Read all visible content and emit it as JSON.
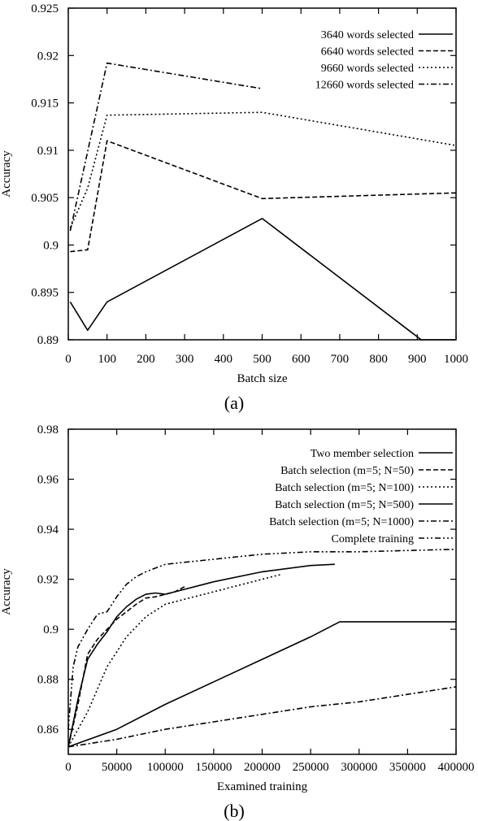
{
  "chart_data": [
    {
      "type": "line",
      "panel_label": "(a)",
      "xlabel": "Batch size",
      "ylabel": "Accuracy",
      "xlim": [
        0,
        1000
      ],
      "ylim": [
        0.89,
        0.925
      ],
      "xticks": [
        0,
        100,
        200,
        300,
        400,
        500,
        600,
        700,
        800,
        900,
        1000
      ],
      "xtick_labels": [
        "0",
        "100",
        "200",
        "300",
        "400",
        "500",
        "600",
        "700",
        "800",
        "900",
        "1000"
      ],
      "yticks": [
        0.89,
        0.895,
        0.9,
        0.905,
        0.91,
        0.915,
        0.92,
        0.925
      ],
      "ytick_labels": [
        "0.89",
        "0.895",
        "0.9",
        "0.905",
        "0.91",
        "0.915",
        "0.92",
        "0.925"
      ],
      "grid": false,
      "legend_position": "top-right",
      "series": [
        {
          "name": "3640 words selected",
          "dash": "solid",
          "x": [
            5,
            50,
            100,
            500,
            910,
            1000
          ],
          "y": [
            0.894,
            0.891,
            0.894,
            0.9028,
            0.89,
            0.89
          ]
        },
        {
          "name": "6640 words selected",
          "dash": "dashed",
          "x": [
            5,
            50,
            100,
            500,
            1000
          ],
          "y": [
            0.8993,
            0.8995,
            0.911,
            0.9049,
            0.9055
          ]
        },
        {
          "name": "9660 words selected",
          "dash": "dotted",
          "x": [
            5,
            50,
            100,
            500,
            1000
          ],
          "y": [
            0.9018,
            0.906,
            0.9137,
            0.914,
            0.9105
          ]
        },
        {
          "name": "12660 words selected",
          "dash": "dashdot",
          "x": [
            5,
            100,
            500
          ],
          "y": [
            0.9015,
            0.9192,
            0.9165
          ]
        }
      ]
    },
    {
      "type": "line",
      "panel_label": "(b)",
      "xlabel": "Examined training",
      "ylabel": "Accuracy",
      "xlim": [
        0,
        400000
      ],
      "ylim": [
        0.85,
        0.98
      ],
      "xticks": [
        0,
        50000,
        100000,
        150000,
        200000,
        250000,
        300000,
        350000,
        400000
      ],
      "xtick_labels": [
        "0",
        "50000",
        "100000",
        "150000",
        "200000",
        "250000",
        "300000",
        "350000",
        "400000"
      ],
      "yticks": [
        0.86,
        0.88,
        0.9,
        0.92,
        0.94,
        0.96,
        0.98
      ],
      "ytick_labels": [
        "0.86",
        "0.88",
        "0.9",
        "0.92",
        "0.94",
        "0.96",
        "0.98"
      ],
      "grid": false,
      "legend_position": "top-right",
      "series": [
        {
          "name": "Two member selection",
          "dash": "solid",
          "x": [
            0,
            10000,
            20000,
            30000,
            40000,
            50000,
            60000,
            70000,
            80000,
            90000,
            100000,
            110000,
            150000,
            200000,
            250000,
            275000
          ],
          "y": [
            0.853,
            0.872,
            0.888,
            0.894,
            0.899,
            0.905,
            0.909,
            0.912,
            0.914,
            0.9145,
            0.914,
            0.915,
            0.919,
            0.923,
            0.9255,
            0.926
          ]
        },
        {
          "name": "Batch selection (m=5; N=50)",
          "dash": "dashed",
          "x": [
            0,
            10000,
            20000,
            30000,
            40000,
            50000,
            60000,
            70000,
            80000,
            90000,
            100000,
            110000,
            120000
          ],
          "y": [
            0.853,
            0.87,
            0.89,
            0.896,
            0.9,
            0.904,
            0.907,
            0.91,
            0.9125,
            0.913,
            0.914,
            0.915,
            0.917
          ]
        },
        {
          "name": "Batch selection (m=5; N=100)",
          "dash": "dotted",
          "x": [
            0,
            20000,
            40000,
            60000,
            80000,
            100000,
            120000,
            150000,
            200000,
            220000
          ],
          "y": [
            0.853,
            0.867,
            0.885,
            0.897,
            0.905,
            0.91,
            0.912,
            0.915,
            0.92,
            0.922
          ]
        },
        {
          "name": "Batch selection (m=5; N=500)",
          "dash": "solid",
          "x": [
            0,
            50000,
            100000,
            150000,
            200000,
            250000,
            280000,
            300000,
            350000,
            400000
          ],
          "y": [
            0.853,
            0.86,
            0.87,
            0.879,
            0.888,
            0.897,
            0.903,
            0.903,
            0.903,
            0.903
          ]
        },
        {
          "name": "Batch selection (m=5; N=1000)",
          "dash": "dashdot",
          "x": [
            0,
            50000,
            100000,
            150000,
            200000,
            250000,
            300000,
            350000,
            400000
          ],
          "y": [
            0.853,
            0.856,
            0.86,
            0.863,
            0.866,
            0.869,
            0.871,
            0.874,
            0.877
          ]
        },
        {
          "name": "Complete training",
          "dash": "dashdotdot",
          "x": [
            0,
            5000,
            10000,
            20000,
            30000,
            40000,
            50000,
            60000,
            70000,
            80000,
            100000,
            150000,
            200000,
            250000,
            300000,
            400000
          ],
          "y": [
            0.86,
            0.885,
            0.893,
            0.9,
            0.906,
            0.907,
            0.913,
            0.918,
            0.921,
            0.923,
            0.926,
            0.928,
            0.93,
            0.931,
            0.931,
            0.932
          ]
        }
      ]
    }
  ]
}
